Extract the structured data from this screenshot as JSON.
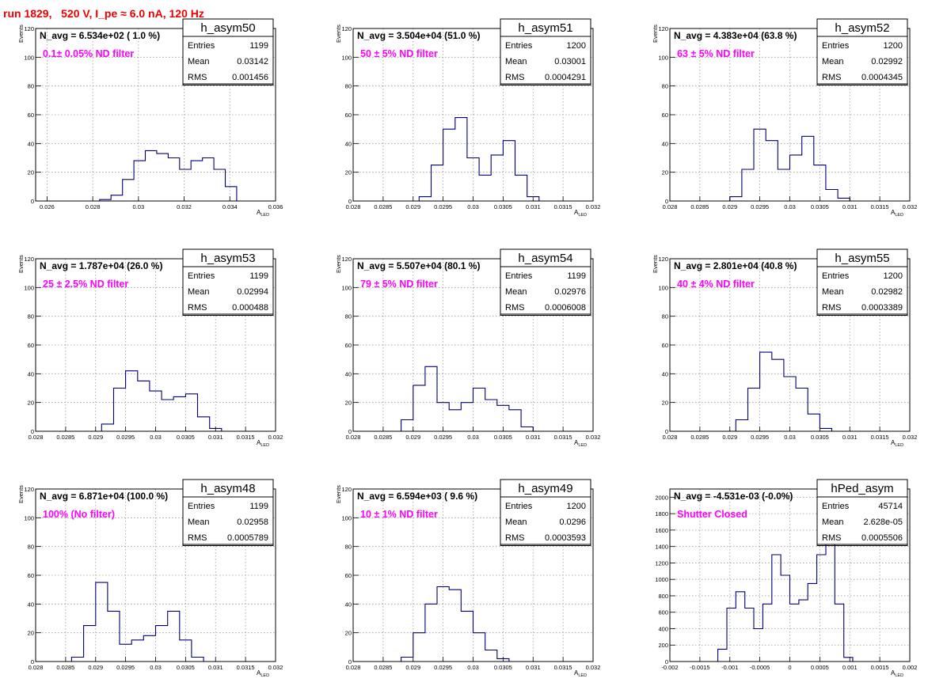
{
  "page_title": "run 1829,   520 V, I_pe ≈ 6.0 nA, 120 Hz",
  "chart_data": [
    {
      "type": "histogram",
      "name": "h_asym50",
      "navg_label": "N_avg = 6.534e+02 ( 1.0 %)",
      "filter_label": "0.1± 0.05% ND filter",
      "stats": {
        "Entries": "1199",
        "Mean": "0.03142",
        "RMS": "0.001456"
      },
      "xlabel": "A",
      "xlabel_sub": "LED",
      "ylabel": "Events",
      "xlim": [
        0.0255,
        0.036
      ],
      "ylim": [
        0,
        120
      ],
      "xticks": [
        0.026,
        0.028,
        0.03,
        0.032,
        0.034,
        0.036
      ],
      "xtick_labels": [
        "0.026",
        "0.028",
        "0.03",
        "0.032",
        "0.034",
        "0.036"
      ],
      "yticks": [
        0,
        20,
        40,
        60,
        80,
        100,
        120
      ],
      "ytick_labels": [
        "0",
        "20",
        "40",
        "60",
        "80",
        "100",
        "120"
      ],
      "edges": [
        0.0283,
        0.0288,
        0.0293,
        0.0298,
        0.0303,
        0.0308,
        0.0313,
        0.0318,
        0.0323,
        0.0328,
        0.0333,
        0.0338,
        0.0343
      ],
      "values": [
        1,
        4,
        15,
        28,
        35,
        33,
        30,
        22,
        28,
        30,
        22,
        10
      ]
    },
    {
      "type": "histogram",
      "name": "h_asym51",
      "navg_label": "N_avg = 3.504e+04 (51.0 %)",
      "filter_label": " 50 ± 5% ND filter",
      "stats": {
        "Entries": "1200",
        "Mean": "0.03001",
        "RMS": "0.0004291"
      },
      "xlabel": "A",
      "xlabel_sub": "LED",
      "ylabel": "Events",
      "xlim": [
        0.028,
        0.032
      ],
      "ylim": [
        0,
        120
      ],
      "xticks": [
        0.028,
        0.0285,
        0.029,
        0.0295,
        0.03,
        0.0305,
        0.031,
        0.0315,
        0.032
      ],
      "xtick_labels": [
        "0.028",
        "0.0285",
        "0.029",
        "0.0295",
        "0.03",
        "0.0305",
        "0.031",
        "0.0315",
        "0.032"
      ],
      "yticks": [
        0,
        20,
        40,
        60,
        80,
        100,
        120
      ],
      "ytick_labels": [
        "0",
        "20",
        "40",
        "60",
        "80",
        "100",
        "120"
      ],
      "edges": [
        0.0291,
        0.0293,
        0.0295,
        0.0297,
        0.0299,
        0.0301,
        0.0303,
        0.0305,
        0.0307,
        0.0309,
        0.0311
      ],
      "values": [
        3,
        25,
        50,
        58,
        30,
        18,
        32,
        42,
        18,
        3
      ]
    },
    {
      "type": "histogram",
      "name": "h_asym52",
      "navg_label": "N_avg = 4.383e+04 (63.8 %)",
      "filter_label": " 63 ± 5% ND filter",
      "stats": {
        "Entries": "1200",
        "Mean": "0.02992",
        "RMS": "0.0004345"
      },
      "xlabel": "A",
      "xlabel_sub": "LED",
      "ylabel": "Events",
      "xlim": [
        0.028,
        0.032
      ],
      "ylim": [
        0,
        120
      ],
      "xticks": [
        0.028,
        0.0285,
        0.029,
        0.0295,
        0.03,
        0.0305,
        0.031,
        0.0315,
        0.032
      ],
      "xtick_labels": [
        "0.028",
        "0.0285",
        "0.029",
        "0.0295",
        "0.03",
        "0.0305",
        "0.031",
        "0.0315",
        "0.032"
      ],
      "yticks": [
        0,
        20,
        40,
        60,
        80,
        100,
        120
      ],
      "ytick_labels": [
        "0",
        "20",
        "40",
        "60",
        "80",
        "100",
        "120"
      ],
      "edges": [
        0.029,
        0.0292,
        0.0294,
        0.0296,
        0.0298,
        0.03,
        0.0302,
        0.0304,
        0.0306,
        0.0308,
        0.031
      ],
      "values": [
        3,
        22,
        50,
        42,
        22,
        32,
        45,
        25,
        8,
        2
      ]
    },
    {
      "type": "histogram",
      "name": "h_asym53",
      "navg_label": "N_avg = 1.787e+04 (26.0 %)",
      "filter_label": " 25 ± 2.5% ND filter",
      "stats": {
        "Entries": "1199",
        "Mean": "0.02994",
        "RMS": "0.000488"
      },
      "xlabel": "A",
      "xlabel_sub": "LED",
      "ylabel": "Events",
      "xlim": [
        0.028,
        0.032
      ],
      "ylim": [
        0,
        120
      ],
      "xticks": [
        0.028,
        0.0285,
        0.029,
        0.0295,
        0.03,
        0.0305,
        0.031,
        0.0315,
        0.032
      ],
      "xtick_labels": [
        "0.028",
        "0.0285",
        "0.029",
        "0.0295",
        "0.03",
        "0.0305",
        "0.031",
        "0.0315",
        "0.032"
      ],
      "yticks": [
        0,
        20,
        40,
        60,
        80,
        100,
        120
      ],
      "ytick_labels": [
        "0",
        "20",
        "40",
        "60",
        "80",
        "100",
        "120"
      ],
      "edges": [
        0.0291,
        0.0293,
        0.0295,
        0.0297,
        0.0299,
        0.0301,
        0.0303,
        0.0305,
        0.0307,
        0.0309,
        0.0311
      ],
      "values": [
        5,
        30,
        42,
        35,
        28,
        22,
        24,
        26,
        10,
        2
      ]
    },
    {
      "type": "histogram",
      "name": "h_asym54",
      "navg_label": "N_avg = 5.507e+04 (80.1 %)",
      "filter_label": " 79 ± 5% ND filter",
      "stats": {
        "Entries": "1199",
        "Mean": "0.02976",
        "RMS": "0.0006008"
      },
      "xlabel": "A",
      "xlabel_sub": "LED",
      "ylabel": "Events",
      "xlim": [
        0.028,
        0.032
      ],
      "ylim": [
        0,
        120
      ],
      "xticks": [
        0.028,
        0.0285,
        0.029,
        0.0295,
        0.03,
        0.0305,
        0.031,
        0.0315,
        0.032
      ],
      "xtick_labels": [
        "0.028",
        "0.0285",
        "0.029",
        "0.0295",
        "0.03",
        "0.0305",
        "0.031",
        "0.0315",
        "0.032"
      ],
      "yticks": [
        0,
        20,
        40,
        60,
        80,
        100,
        120
      ],
      "ytick_labels": [
        "0",
        "20",
        "40",
        "60",
        "80",
        "100",
        "120"
      ],
      "edges": [
        0.0288,
        0.029,
        0.0292,
        0.0294,
        0.0296,
        0.0298,
        0.03,
        0.0302,
        0.0304,
        0.0306,
        0.0308,
        0.031
      ],
      "values": [
        8,
        32,
        45,
        20,
        15,
        20,
        30,
        22,
        18,
        15,
        3
      ]
    },
    {
      "type": "histogram",
      "name": "h_asym55",
      "navg_label": "N_avg = 2.801e+04 (40.8 %)",
      "filter_label": " 40 ± 4% ND filter",
      "stats": {
        "Entries": "1200",
        "Mean": "0.02982",
        "RMS": "0.0003389"
      },
      "xlabel": "A",
      "xlabel_sub": "LED",
      "ylabel": "Events",
      "xlim": [
        0.028,
        0.032
      ],
      "ylim": [
        0,
        120
      ],
      "xticks": [
        0.028,
        0.0285,
        0.029,
        0.0295,
        0.03,
        0.0305,
        0.031,
        0.0315,
        0.032
      ],
      "xtick_labels": [
        "0.028",
        "0.0285",
        "0.029",
        "0.0295",
        "0.03",
        "0.0305",
        "0.031",
        "0.0315",
        "0.032"
      ],
      "yticks": [
        0,
        20,
        40,
        60,
        80,
        100,
        120
      ],
      "ytick_labels": [
        "0",
        "20",
        "40",
        "60",
        "80",
        "100",
        "120"
      ],
      "edges": [
        0.0291,
        0.0293,
        0.0295,
        0.0297,
        0.0299,
        0.0301,
        0.0303,
        0.0305,
        0.0307
      ],
      "values": [
        8,
        30,
        55,
        50,
        38,
        30,
        12,
        2
      ]
    },
    {
      "type": "histogram",
      "name": "h_asym48",
      "navg_label": "N_avg = 6.871e+04 (100.0 %)",
      "filter_label": " 100% (No filter)",
      "stats": {
        "Entries": "1199",
        "Mean": "0.02958",
        "RMS": "0.0005789"
      },
      "xlabel": "A",
      "xlabel_sub": "LED",
      "ylabel": "Events",
      "xlim": [
        0.028,
        0.032
      ],
      "ylim": [
        0,
        120
      ],
      "xticks": [
        0.028,
        0.0285,
        0.029,
        0.0295,
        0.03,
        0.0305,
        0.031,
        0.0315,
        0.032
      ],
      "xtick_labels": [
        "0.028",
        "0.0285",
        "0.029",
        "0.0295",
        "0.03",
        "0.0305",
        "0.031",
        "0.0315",
        "0.032"
      ],
      "yticks": [
        0,
        20,
        40,
        60,
        80,
        100,
        120
      ],
      "ytick_labels": [
        "0",
        "20",
        "40",
        "60",
        "80",
        "100",
        "120"
      ],
      "edges": [
        0.0286,
        0.0288,
        0.029,
        0.0292,
        0.0294,
        0.0296,
        0.0298,
        0.03,
        0.0302,
        0.0304,
        0.0306,
        0.0308
      ],
      "values": [
        3,
        25,
        55,
        35,
        12,
        15,
        18,
        25,
        35,
        15,
        3
      ]
    },
    {
      "type": "histogram",
      "name": "h_asym49",
      "navg_label": "N_avg = 6.594e+03 ( 9.6 %)",
      "filter_label": " 10 ± 1% ND filter",
      "stats": {
        "Entries": "1200",
        "Mean": "0.0296",
        "RMS": "0.0003593"
      },
      "xlabel": "A",
      "xlabel_sub": "LED",
      "ylabel": "Events",
      "xlim": [
        0.028,
        0.032
      ],
      "ylim": [
        0,
        120
      ],
      "xticks": [
        0.028,
        0.0285,
        0.029,
        0.0295,
        0.03,
        0.0305,
        0.031,
        0.0315,
        0.032
      ],
      "xtick_labels": [
        "0.028",
        "0.0285",
        "0.029",
        "0.0295",
        "0.03",
        "0.0305",
        "0.031",
        "0.0315",
        "0.032"
      ],
      "yticks": [
        0,
        20,
        40,
        60,
        80,
        100,
        120
      ],
      "ytick_labels": [
        "0",
        "20",
        "40",
        "60",
        "80",
        "100",
        "120"
      ],
      "edges": [
        0.0288,
        0.029,
        0.0292,
        0.0294,
        0.0296,
        0.0298,
        0.03,
        0.0302,
        0.0304,
        0.0306
      ],
      "values": [
        3,
        20,
        40,
        52,
        50,
        35,
        20,
        8,
        2
      ]
    },
    {
      "type": "histogram",
      "name": "hPed_asym",
      "navg_label": "N_avg = -4.531e-03 (-0.0%)",
      "filter_label": "Shutter Closed",
      "stats": {
        "Entries": "45714",
        "Mean": "2.628e-05",
        "RMS": "0.0005506"
      },
      "xlabel": "A",
      "xlabel_sub": "LED",
      "ylabel": "",
      "xlim": [
        -0.002,
        0.002
      ],
      "ylim": [
        0,
        2100
      ],
      "xticks": [
        -0.002,
        -0.0015,
        -0.001,
        -0.0005,
        0,
        0.0005,
        0.001,
        0.0015,
        0.002
      ],
      "xtick_labels": [
        "-0.002",
        "-0.0015",
        "-0.001",
        "-0.0005",
        "0",
        "0.0005",
        "0.001",
        "0.0015",
        "0.002"
      ],
      "yticks": [
        0,
        200,
        400,
        600,
        800,
        1000,
        1200,
        1400,
        1600,
        1800,
        2000
      ],
      "ytick_labels": [
        "0",
        "200",
        "400",
        "600",
        "800",
        "1000",
        "1200",
        "1400",
        "1600",
        "1800",
        "2000"
      ],
      "edges": [
        -0.0012,
        -0.00105,
        -0.0009,
        -0.00075,
        -0.0006,
        -0.00045,
        -0.0003,
        -0.00015,
        0,
        0.00015,
        0.0003,
        0.00045,
        0.0006,
        0.00075,
        0.0009,
        0.00105
      ],
      "values": [
        150,
        650,
        850,
        650,
        400,
        700,
        1300,
        1050,
        700,
        750,
        950,
        1300,
        1950,
        700,
        50
      ]
    }
  ]
}
